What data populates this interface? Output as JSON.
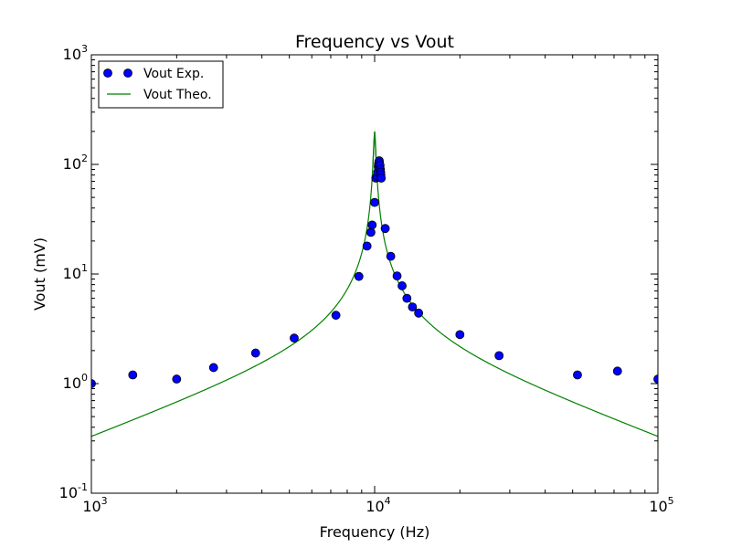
{
  "chart_data": {
    "type": "scatter",
    "title": "Frequency vs Vout",
    "xlabel": "Frequency (Hz)",
    "ylabel": "Vout (mV)",
    "xscale": "log",
    "yscale": "log",
    "xlim": [
      1000,
      100000
    ],
    "ylim": [
      0.1,
      1000
    ],
    "grid": false,
    "legend_position": "top-left",
    "x_ticks": [
      {
        "base": "10",
        "exp": "3"
      },
      {
        "base": "10",
        "exp": "4"
      },
      {
        "base": "10",
        "exp": "5"
      }
    ],
    "y_ticks": [
      {
        "base": "10",
        "exp": "-1"
      },
      {
        "base": "10",
        "exp": "0"
      },
      {
        "base": "10",
        "exp": "1"
      },
      {
        "base": "10",
        "exp": "2"
      },
      {
        "base": "10",
        "exp": "3"
      }
    ],
    "series": [
      {
        "name": "Vout Exp.",
        "kind": "scatter",
        "color": "#0000ff",
        "points": [
          [
            1000,
            1.0
          ],
          [
            1400,
            1.2
          ],
          [
            2000,
            1.1
          ],
          [
            2700,
            1.4
          ],
          [
            3800,
            1.9
          ],
          [
            5200,
            2.6
          ],
          [
            7300,
            4.2
          ],
          [
            8800,
            9.5
          ],
          [
            9400,
            18
          ],
          [
            9700,
            24
          ],
          [
            9800,
            28
          ],
          [
            10000,
            45
          ],
          [
            10100,
            75
          ],
          [
            10200,
            78
          ],
          [
            10250,
            85
          ],
          [
            10300,
            95
          ],
          [
            10320,
            100
          ],
          [
            10350,
            105
          ],
          [
            10380,
            108
          ],
          [
            10400,
            103
          ],
          [
            10450,
            98
          ],
          [
            10480,
            90
          ],
          [
            10500,
            85
          ],
          [
            10520,
            80
          ],
          [
            10550,
            75
          ],
          [
            10900,
            26
          ],
          [
            11400,
            14.5
          ],
          [
            12000,
            9.6
          ],
          [
            12500,
            7.8
          ],
          [
            13000,
            6.0
          ],
          [
            13600,
            5.0
          ],
          [
            14300,
            4.4
          ],
          [
            20000,
            2.8
          ],
          [
            27500,
            1.8
          ],
          [
            52000,
            1.2
          ],
          [
            72000,
            1.3
          ],
          [
            100000,
            1.1
          ]
        ]
      },
      {
        "name": "Vout Theo.",
        "kind": "line",
        "color": "#008000",
        "model": {
          "f0": 10000,
          "peak": 200,
          "low_end": 0.33
        }
      }
    ]
  }
}
